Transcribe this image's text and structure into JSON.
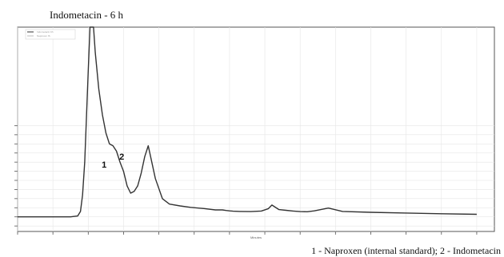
{
  "chart_data": {
    "type": "line",
    "title": "Indometacin - 6 h",
    "xlabel": "Minutes",
    "caption": "1 - Naproxen (internal standard); 2 - Indometacin",
    "legend": [
      "Indometacin 6h",
      "Naproxen IS"
    ],
    "xlim": [
      0,
      13.5
    ],
    "ylim": [
      -8,
      104
    ],
    "xticks": [
      0,
      1,
      2,
      3,
      4,
      5,
      6,
      7,
      8,
      9,
      10,
      11,
      12,
      13
    ],
    "yticks": [
      -5,
      0,
      5,
      10,
      15,
      20,
      25,
      30,
      35,
      40,
      45,
      50
    ],
    "tick_labels_legible": false,
    "grid": true,
    "line_color": "#333333",
    "peaks": [
      {
        "label": "1",
        "x": 2.45,
        "y": 23.0
      },
      {
        "label": "2",
        "x": 2.95,
        "y": 27.5
      }
    ],
    "series": [
      {
        "x": [
          0.0,
          1.5,
          1.7,
          1.78,
          1.84,
          1.9,
          1.95,
          2.0,
          2.05,
          2.1,
          2.15,
          2.2,
          2.3,
          2.4,
          2.5,
          2.6,
          2.7,
          2.8,
          2.9,
          3.0,
          3.1,
          3.2,
          3.3,
          3.4,
          3.5,
          3.6,
          3.7,
          3.9,
          4.1,
          4.3,
          4.6,
          4.9,
          5.3,
          5.6,
          5.8,
          5.9,
          6.0,
          6.1,
          6.3,
          6.6,
          6.9,
          7.1,
          7.2,
          7.4,
          7.6,
          7.8,
          8.0,
          8.2,
          8.4,
          8.8,
          9.2,
          10.0,
          11.0,
          12.0,
          13.0
        ],
        "y": [
          0.0,
          0.0,
          0.5,
          3.0,
          12.0,
          30.0,
          55.0,
          80.0,
          104.0,
          104.0,
          104.0,
          90.0,
          70.0,
          56.0,
          46.0,
          40.0,
          39.0,
          36.0,
          30.0,
          25.0,
          17.0,
          13.0,
          14.0,
          17.0,
          24.0,
          33.0,
          39.0,
          21.0,
          10.0,
          7.0,
          6.0,
          5.2,
          4.5,
          3.8,
          3.8,
          3.5,
          3.3,
          3.1,
          3.0,
          2.9,
          3.2,
          4.5,
          6.5,
          4.0,
          3.6,
          3.2,
          2.9,
          2.8,
          3.3,
          4.8,
          3.0,
          2.5,
          2.1,
          1.7,
          1.4
        ]
      }
    ]
  }
}
